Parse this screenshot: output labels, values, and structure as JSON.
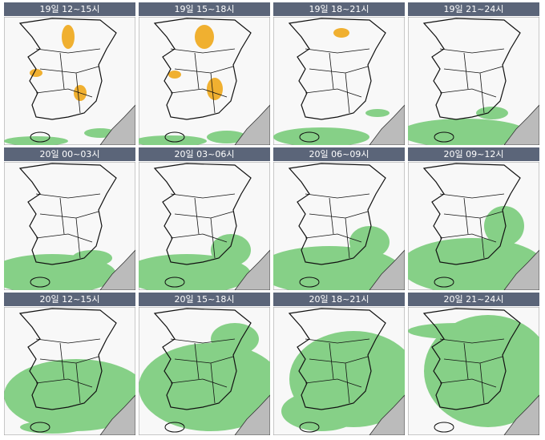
{
  "panels": [
    {
      "title": "19일 12~15시"
    },
    {
      "title": "19일 15~18시"
    },
    {
      "title": "19일 18~21시"
    },
    {
      "title": "19일 21~24시"
    },
    {
      "title": "20일 00~03시"
    },
    {
      "title": "20일 03~06시"
    },
    {
      "title": "20일 06~09시"
    },
    {
      "title": "20일 09~12시"
    },
    {
      "title": "20일 12~15시"
    },
    {
      "title": "20일 15~18시"
    },
    {
      "title": "20일 18~21시"
    },
    {
      "title": "20일 21~24시"
    }
  ]
}
